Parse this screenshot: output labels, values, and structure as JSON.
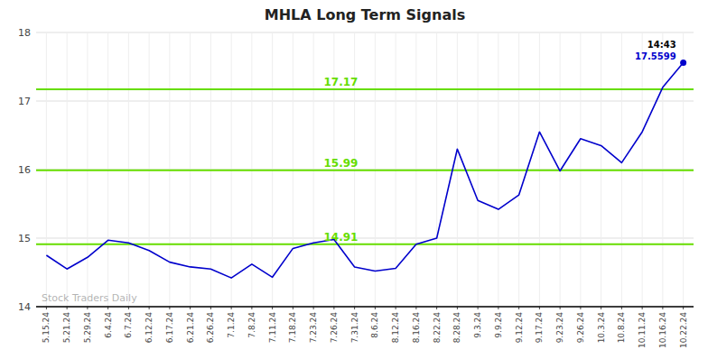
{
  "chart_data": {
    "type": "line",
    "title": "MHLA Long Term Signals",
    "categories": [
      "5.15.24",
      "5.21.24",
      "5.29.24",
      "6.4.24",
      "6.7.24",
      "6.12.24",
      "6.17.24",
      "6.21.24",
      "6.26.24",
      "7.1.24",
      "7.8.24",
      "7.11.24",
      "7.18.24",
      "7.23.24",
      "7.26.24",
      "7.31.24",
      "8.6.24",
      "8.12.24",
      "8.16.24",
      "8.22.24",
      "8.28.24",
      "9.3.24",
      "9.9.24",
      "9.12.24",
      "9.17.24",
      "9.23.24",
      "9.26.24",
      "10.3.24",
      "10.8.24",
      "10.11.24",
      "10.16.24",
      "10.22.24"
    ],
    "values": [
      14.75,
      14.55,
      14.72,
      14.97,
      14.93,
      14.82,
      14.65,
      14.58,
      14.55,
      14.42,
      14.62,
      14.43,
      14.85,
      14.93,
      14.98,
      14.58,
      14.52,
      14.56,
      14.91,
      15.0,
      16.3,
      15.55,
      15.42,
      15.63,
      16.55,
      15.98,
      16.45,
      16.35,
      16.1,
      16.55,
      17.2,
      17.56
    ],
    "color": "#0000cc",
    "reference_lines": {
      "color": "#66dd00",
      "values": [
        14.91,
        15.99,
        17.17
      ],
      "value_labels": [
        "14.91",
        "15.99",
        "17.17"
      ]
    },
    "point": {
      "x": "10.22.24",
      "value": 17.5599,
      "time": "14:43",
      "label": "17.5599"
    },
    "watermark": "Stock Traders Daily",
    "ylim": [
      14.0,
      18.0
    ],
    "yticks": [
      14,
      15,
      16,
      17,
      18
    ],
    "grid": true
  }
}
